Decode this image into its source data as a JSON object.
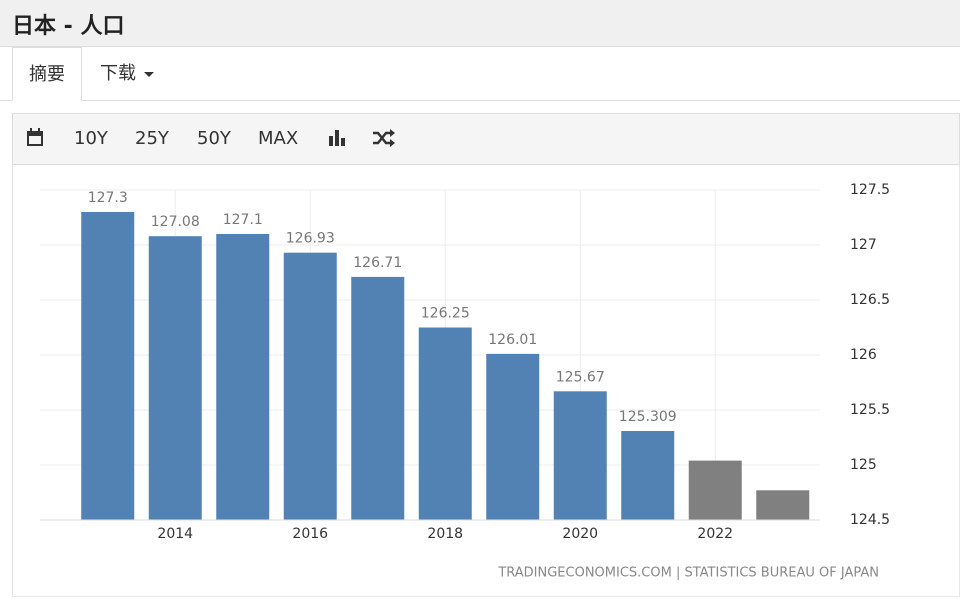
{
  "header": {
    "title": "日本 - 人口"
  },
  "tabs": [
    "摘要",
    "下载"
  ],
  "toolbar": [
    "10Y",
    "25Y",
    "50Y",
    "MAX"
  ],
  "chart_data": {
    "type": "bar",
    "categories": [
      null,
      "2014",
      null,
      "2016",
      null,
      "2018",
      null,
      "2020",
      null,
      "2022",
      null
    ],
    "series": [
      {
        "color": "#5282b4",
        "data_labels": true,
        "values": [
          127.3,
          127.08,
          127.1,
          126.93,
          126.71,
          126.25,
          126.01,
          125.67,
          125.309,
          null,
          null
        ]
      },
      {
        "color": "#808080",
        "data_labels": false,
        "values": [
          null,
          null,
          null,
          null,
          null,
          null,
          null,
          null,
          null,
          125.04,
          124.77
        ]
      }
    ],
    "ylim": [
      124.5,
      127.5
    ],
    "yticks": [
      124.5,
      125,
      125.5,
      126,
      126.5,
      127,
      127.5
    ],
    "grid": true,
    "y_axis_side": "right",
    "source": "TRADINGECONOMICS.COM | STATISTICS BUREAU OF JAPAN"
  }
}
